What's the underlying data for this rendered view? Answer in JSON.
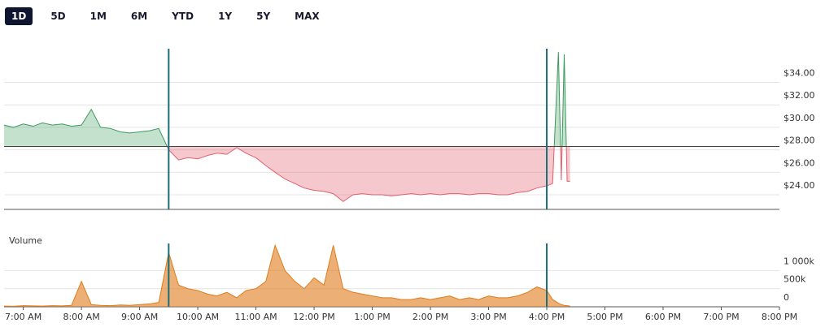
{
  "tabs": {
    "items": [
      "1D",
      "5D",
      "1M",
      "6M",
      "YTD",
      "1Y",
      "5Y",
      "MAX"
    ],
    "selected": 0
  },
  "chart_data": [
    {
      "type": "baseline-area",
      "x": [
        6.67,
        6.83,
        7,
        7.17,
        7.33,
        7.5,
        7.67,
        7.83,
        8,
        8.17,
        8.33,
        8.5,
        8.67,
        8.83,
        9,
        9.17,
        9.33,
        9.5,
        9.67,
        9.83,
        10,
        10.17,
        10.33,
        10.5,
        10.67,
        10.83,
        11,
        11.17,
        11.33,
        11.5,
        11.67,
        11.83,
        12,
        12.17,
        12.33,
        12.5,
        12.67,
        12.83,
        13,
        13.17,
        13.33,
        13.5,
        13.67,
        13.83,
        14,
        14.17,
        14.33,
        14.5,
        14.67,
        14.83,
        15,
        15.17,
        15.33,
        15.5,
        15.67,
        15.83,
        16,
        16.1,
        16.2,
        16.25,
        16.3,
        16.35,
        16.4
      ],
      "values": [
        30.2,
        30.0,
        30.3,
        30.1,
        30.4,
        30.2,
        30.3,
        30.1,
        30.2,
        31.6,
        30.0,
        29.9,
        29.6,
        29.5,
        29.6,
        29.7,
        29.9,
        28.0,
        27.1,
        27.3,
        27.2,
        27.5,
        27.7,
        27.6,
        28.2,
        27.7,
        27.3,
        26.6,
        26.0,
        25.4,
        25.0,
        24.6,
        24.4,
        24.3,
        24.1,
        23.4,
        24.0,
        24.1,
        24.0,
        24.0,
        23.9,
        24.0,
        24.1,
        24.0,
        24.1,
        24.0,
        24.1,
        24.1,
        24.0,
        24.1,
        24.1,
        24.0,
        24.0,
        24.2,
        24.3,
        24.6,
        24.8,
        25.0,
        36.7,
        25.3,
        36.5,
        25.2,
        25.2
      ],
      "baseline": 28.3,
      "up_color": "#3c9a5c",
      "down_color": "#e0606e",
      "markers": [
        9.5,
        16
      ],
      "marker_color": "#1b6f7a",
      "xlim": [
        6.67,
        20
      ],
      "ylim": [
        22.7,
        37
      ],
      "yticks": [
        {
          "value": 24,
          "label": "$24.00"
        },
        {
          "value": 26,
          "label": "$26.00"
        },
        {
          "value": 28,
          "label": "$28.00"
        },
        {
          "value": 30,
          "label": "$30.00"
        },
        {
          "value": 32,
          "label": "$32.00"
        },
        {
          "value": 34,
          "label": "$34.00"
        }
      ],
      "grid": true
    },
    {
      "type": "area",
      "title": "Volume",
      "color": "#e07b1a",
      "x": [
        6.67,
        6.83,
        7,
        7.17,
        7.33,
        7.5,
        7.67,
        7.83,
        8,
        8.17,
        8.33,
        8.5,
        8.67,
        8.83,
        9,
        9.17,
        9.33,
        9.5,
        9.67,
        9.83,
        10,
        10.17,
        10.33,
        10.5,
        10.67,
        10.83,
        11,
        11.17,
        11.33,
        11.5,
        11.67,
        11.83,
        12,
        12.17,
        12.33,
        12.5,
        12.67,
        12.83,
        13,
        13.17,
        13.33,
        13.5,
        13.67,
        13.83,
        14,
        14.17,
        14.33,
        14.5,
        14.67,
        14.83,
        15,
        15.17,
        15.33,
        15.5,
        15.67,
        15.83,
        16,
        16.1,
        16.2,
        16.25,
        16.3,
        16.35,
        16.4
      ],
      "values": [
        20,
        15,
        30,
        25,
        20,
        30,
        25,
        40,
        700,
        60,
        40,
        30,
        50,
        40,
        60,
        80,
        120,
        1500,
        600,
        500,
        450,
        350,
        300,
        400,
        250,
        450,
        500,
        700,
        1700,
        1000,
        700,
        500,
        800,
        600,
        1700,
        500,
        400,
        350,
        300,
        250,
        250,
        200,
        200,
        250,
        200,
        250,
        300,
        200,
        250,
        200,
        300,
        250,
        250,
        300,
        400,
        550,
        450,
        200,
        100,
        60,
        40,
        30,
        20
      ],
      "markers": [
        9.5,
        16
      ],
      "marker_color": "#1b6f7a",
      "xlim": [
        6.67,
        20
      ],
      "ylim": [
        0,
        1750
      ],
      "yticks": [
        0,
        {
          "value": 500,
          "label": "500k"
        },
        {
          "value": 1000,
          "label": "1 000k"
        }
      ],
      "xticks": [
        {
          "value": 7,
          "label": "7:00 AM"
        },
        {
          "value": 8,
          "label": "8:00 AM"
        },
        {
          "value": 9,
          "label": "9:00 AM"
        },
        {
          "value": 10,
          "label": "10:00 AM"
        },
        {
          "value": 11,
          "label": "11:00 AM"
        },
        {
          "value": 12,
          "label": "12:00 PM"
        },
        {
          "value": 13,
          "label": "1:00 PM"
        },
        {
          "value": 14,
          "label": "2:00 PM"
        },
        {
          "value": 15,
          "label": "3:00 PM"
        },
        {
          "value": 16,
          "label": "4:00 PM"
        },
        {
          "value": 17,
          "label": "5:00 PM"
        },
        {
          "value": 18,
          "label": "6:00 PM"
        },
        {
          "value": 19,
          "label": "7:00 PM"
        },
        {
          "value": 20,
          "label": "8:00 PM"
        }
      ],
      "grid": true
    }
  ]
}
